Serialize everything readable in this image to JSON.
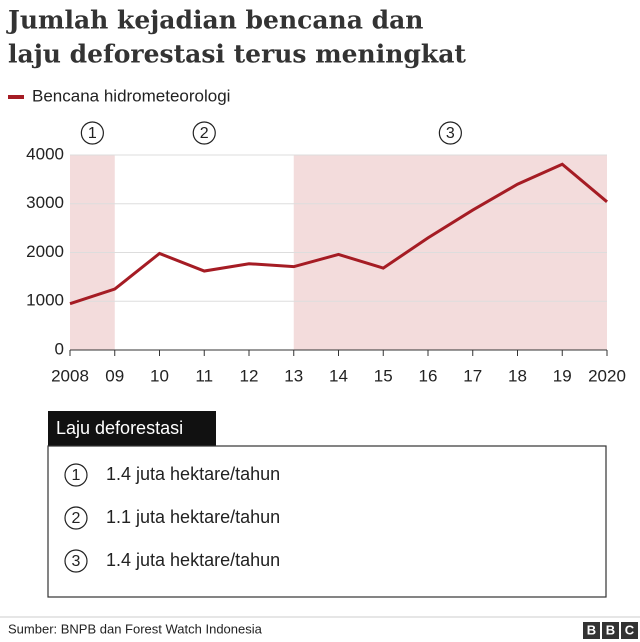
{
  "title": [
    "Jumlah kejadian bencana dan",
    "laju deforestasi terus meningkat"
  ],
  "chart_data": {
    "type": "line",
    "categories": [
      "2008",
      "09",
      "10",
      "11",
      "12",
      "13",
      "14",
      "15",
      "16",
      "17",
      "18",
      "19",
      "2020"
    ],
    "series": [
      {
        "name": "Bencana hidrometeorologi",
        "color": "#a51c24",
        "values": [
          950,
          1250,
          1980,
          1620,
          1770,
          1710,
          1960,
          1680,
          2300,
          2870,
          3400,
          3810,
          3040
        ]
      }
    ],
    "ylim": [
      0,
      4000
    ],
    "yticks": [
      0,
      1000,
      2000,
      3000,
      4000
    ],
    "grid": true,
    "periods": [
      {
        "label": "1",
        "from": "2008",
        "to": "09",
        "shaded": true
      },
      {
        "label": "2",
        "from": "09",
        "to": "13",
        "shaded": false
      },
      {
        "label": "3",
        "from": "13",
        "to": "2020",
        "shaded": true
      }
    ],
    "shade_color": "#f3dcdc"
  },
  "deforestation_box": {
    "header": "Laju deforestasi",
    "items": [
      {
        "marker": "1",
        "text": "1.4 juta hektare/tahun"
      },
      {
        "marker": "2",
        "text": "1.1 juta hektare/tahun"
      },
      {
        "marker": "3",
        "text": "1.4 juta hektare/tahun"
      }
    ]
  },
  "source": "Sumber: BNPB dan Forest Watch Indonesia",
  "logo": [
    "B",
    "B",
    "C"
  ]
}
